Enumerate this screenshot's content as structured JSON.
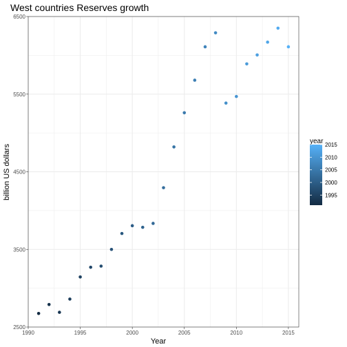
{
  "chart_data": {
    "type": "scatter",
    "title": "West countries Reserves growth",
    "xlabel": "Year",
    "ylabel": "billion US dollars",
    "xlim": [
      1990,
      2016
    ],
    "ylim": [
      2500,
      6500
    ],
    "x_ticks": [
      1990,
      1995,
      2000,
      2005,
      2010,
      2015
    ],
    "y_ticks": [
      2500,
      3500,
      4500,
      5500,
      6500
    ],
    "grid": true,
    "legend": {
      "title": "year",
      "position": "right",
      "ticks": [
        2015,
        2010,
        2005,
        2000,
        1995
      ],
      "range": [
        1991,
        2015
      ]
    },
    "colors": {
      "low": "#132b43",
      "high": "#56b1f7",
      "grid": "#ebebeb",
      "panel_border": "#333333"
    },
    "points": [
      {
        "x": 1991,
        "y": 2675
      },
      {
        "x": 1992,
        "y": 2790
      },
      {
        "x": 1993,
        "y": 2690
      },
      {
        "x": 1994,
        "y": 2860
      },
      {
        "x": 1995,
        "y": 3145
      },
      {
        "x": 1996,
        "y": 3270
      },
      {
        "x": 1997,
        "y": 3285
      },
      {
        "x": 1998,
        "y": 3500
      },
      {
        "x": 1999,
        "y": 3705
      },
      {
        "x": 2000,
        "y": 3805
      },
      {
        "x": 2001,
        "y": 3785
      },
      {
        "x": 2002,
        "y": 3835
      },
      {
        "x": 2003,
        "y": 4295
      },
      {
        "x": 2004,
        "y": 4820
      },
      {
        "x": 2005,
        "y": 5260
      },
      {
        "x": 2006,
        "y": 5680
      },
      {
        "x": 2007,
        "y": 6110
      },
      {
        "x": 2008,
        "y": 6290
      },
      {
        "x": 2009,
        "y": 5385
      },
      {
        "x": 2010,
        "y": 5470
      },
      {
        "x": 2011,
        "y": 5890
      },
      {
        "x": 2012,
        "y": 6005
      },
      {
        "x": 2013,
        "y": 6170
      },
      {
        "x": 2014,
        "y": 6350
      },
      {
        "x": 2015,
        "y": 6110
      }
    ]
  }
}
